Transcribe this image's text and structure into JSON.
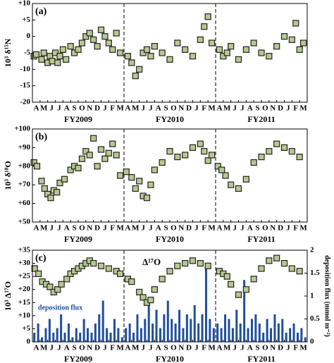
{
  "chart_data": [
    {
      "type": "scatter",
      "panel_label": "(a)",
      "ylabel": "10³ δ¹⁵N",
      "categories": [
        "A",
        "M",
        "J",
        "J",
        "A",
        "S",
        "O",
        "N",
        "D",
        "J",
        "F",
        "M",
        "A",
        "M",
        "J",
        "J",
        "A",
        "S",
        "O",
        "N",
        "D",
        "J",
        "F",
        "M",
        "A",
        "M",
        "J",
        "J",
        "A",
        "S",
        "O",
        "N",
        "D",
        "J",
        "F",
        "M"
      ],
      "fy_labels": [
        "FY2009",
        "FY2010",
        "FY2011"
      ],
      "vlines": [
        12,
        24
      ],
      "xlim": [
        0,
        36
      ],
      "ylim": [
        -20,
        10
      ],
      "yticks": [
        {
          "value": 10,
          "label": "+10"
        },
        {
          "value": 5,
          "label": "+5"
        },
        0,
        -5,
        -10,
        -15,
        -20
      ],
      "color": "#b7c98f",
      "x": [
        0.2,
        0.5,
        1.2,
        1.5,
        2,
        2.3,
        2.6,
        3,
        3.3,
        3.6,
        4,
        4.4,
        5,
        5.5,
        6,
        6.5,
        7,
        7.5,
        8,
        8.5,
        9,
        9.5,
        10,
        10.5,
        11,
        11.5,
        12.5,
        13,
        13.5,
        14,
        14.5,
        15,
        15.5,
        16,
        17,
        18,
        19,
        20,
        21,
        22,
        22.5,
        23,
        23.5,
        24.5,
        25,
        25.5,
        26,
        27,
        28,
        29,
        30,
        31,
        32,
        33,
        34,
        34.5,
        35,
        35.5
      ],
      "values": [
        -6,
        -5.5,
        -7,
        -5,
        -8,
        -6,
        -7.5,
        -5,
        -8,
        -6,
        -4,
        -7,
        -3,
        -5,
        -4,
        -2,
        0,
        1,
        -1,
        -3,
        2,
        0,
        -2,
        -4,
        1,
        -5,
        -6,
        -8,
        -12,
        -10,
        -5,
        -4,
        -6,
        -3,
        -5,
        -7,
        -2,
        -4,
        -6,
        -1,
        3,
        6,
        -2,
        -4,
        -6,
        -5,
        -3,
        -7,
        -4,
        -2,
        -5,
        -6,
        -3,
        0,
        -1,
        4,
        -4,
        -2
      ]
    },
    {
      "type": "scatter",
      "panel_label": "(b)",
      "ylabel": "10³ δ¹⁸O",
      "categories": [
        "A",
        "M",
        "J",
        "J",
        "A",
        "S",
        "O",
        "N",
        "D",
        "J",
        "F",
        "M",
        "A",
        "M",
        "J",
        "J",
        "A",
        "S",
        "O",
        "N",
        "D",
        "J",
        "F",
        "M",
        "A",
        "M",
        "J",
        "J",
        "A",
        "S",
        "O",
        "N",
        "D",
        "J",
        "F",
        "M"
      ],
      "fy_labels": [
        "FY2009",
        "FY2010",
        "FY2011"
      ],
      "vlines": [
        12,
        24
      ],
      "xlim": [
        0,
        36
      ],
      "ylim": [
        50,
        100
      ],
      "yticks": [
        {
          "value": 100,
          "label": "+100"
        },
        {
          "value": 90,
          "label": "+90"
        },
        {
          "value": 80,
          "label": "+80"
        },
        {
          "value": 70,
          "label": "+70"
        },
        {
          "value": 60,
          "label": "+60"
        },
        {
          "value": 50,
          "label": "+50"
        }
      ],
      "color": "#b7c98f",
      "x": [
        0.2,
        0.6,
        1.2,
        1.6,
        2,
        2.4,
        2.8,
        3.2,
        3.6,
        4.2,
        5,
        5.5,
        6,
        6.5,
        7,
        7.5,
        8,
        8.5,
        9,
        9.5,
        10,
        10.5,
        11,
        11.5,
        12.3,
        13,
        13.5,
        14,
        14.5,
        15,
        15.5,
        16,
        17,
        18,
        19,
        20,
        21,
        22,
        22.5,
        23,
        23.5,
        24.3,
        24.8,
        25.3,
        26,
        27,
        28,
        29,
        30,
        31,
        32,
        33,
        34,
        35
      ],
      "values": [
        82,
        80,
        72,
        68,
        65,
        63,
        67,
        66,
        71,
        73,
        78,
        80,
        79,
        84,
        88,
        86,
        95,
        80,
        89,
        84,
        87,
        92,
        86,
        75,
        77,
        74,
        68,
        72,
        64,
        63,
        70,
        78,
        82,
        88,
        85,
        86,
        90,
        92,
        88,
        83,
        86,
        80,
        78,
        75,
        70,
        68,
        73,
        82,
        85,
        88,
        92,
        90,
        88,
        85
      ]
    },
    {
      "type": "scatter",
      "panel_label": "(c)",
      "ylabel": "10³ Δ¹⁷O",
      "y2label": "deposition flux (mmol m⁻²)",
      "categories": [
        "A",
        "M",
        "J",
        "J",
        "A",
        "S",
        "O",
        "N",
        "D",
        "J",
        "F",
        "M",
        "A",
        "M",
        "J",
        "J",
        "A",
        "S",
        "O",
        "N",
        "D",
        "J",
        "F",
        "M",
        "A",
        "M",
        "J",
        "J",
        "A",
        "S",
        "O",
        "N",
        "D",
        "J",
        "F",
        "M"
      ],
      "fy_labels": [
        "FY2009",
        "FY2010",
        "FY2011"
      ],
      "vlines": [
        12,
        24
      ],
      "xlim": [
        0,
        36
      ],
      "ylim": [
        0,
        35
      ],
      "yticks": [
        {
          "value": 35,
          "label": "+35"
        },
        {
          "value": 30,
          "label": "+30"
        },
        {
          "value": 25,
          "label": "+25"
        },
        {
          "value": 20,
          "label": "+20"
        },
        {
          "value": 15,
          "label": "+15"
        },
        {
          "value": 10,
          "label": "+10"
        },
        {
          "value": 5,
          "label": "+5"
        },
        0
      ],
      "y2lim": [
        0,
        2.0
      ],
      "y2ticks": [
        2,
        1.5,
        1,
        0.5,
        0
      ],
      "series": [
        {
          "name": "Δ¹⁷O",
          "type": "scatter",
          "color": "#b7c98f",
          "x": [
            0.3,
            0.8,
            1.3,
            1.8,
            2.3,
            2.8,
            3.3,
            3.8,
            4.5,
            5,
            5.5,
            6,
            6.5,
            7,
            7.5,
            8,
            9,
            10,
            11,
            11.5,
            12.5,
            13,
            14,
            14.5,
            15,
            15.5,
            16,
            17,
            18,
            19,
            20,
            21,
            22,
            23,
            24.5,
            25,
            25.5,
            26,
            27,
            28,
            29,
            30,
            31,
            32,
            33,
            34,
            35
          ],
          "values": [
            28,
            26,
            23,
            22,
            21,
            19,
            20,
            22,
            24,
            26,
            27,
            28,
            29,
            30,
            31,
            30,
            29,
            28,
            27,
            26,
            24,
            23,
            19,
            17,
            15,
            16,
            20,
            24,
            27,
            29,
            30,
            31,
            30,
            29,
            27,
            26,
            25,
            22,
            18,
            20,
            24,
            28,
            31,
            32,
            30,
            28,
            27
          ]
        },
        {
          "name": "deposition flux",
          "type": "bar",
          "axis": "y2",
          "color": "#1f4e9c",
          "x": [
            0.25,
            0.75,
            1.25,
            1.75,
            2.25,
            2.75,
            3.25,
            3.75,
            4.25,
            4.75,
            5.25,
            5.75,
            6.25,
            6.75,
            7.25,
            7.75,
            8.25,
            8.75,
            9.25,
            9.75,
            10.25,
            10.75,
            11.25,
            11.75,
            12.25,
            12.75,
            13.25,
            13.75,
            14.25,
            14.75,
            15.25,
            15.75,
            16.25,
            16.75,
            17.25,
            17.75,
            18.25,
            18.75,
            19.25,
            19.75,
            20.25,
            20.75,
            21.25,
            21.75,
            22.25,
            22.75,
            23.25,
            23.75,
            24.25,
            24.75,
            25.25,
            25.75,
            26.25,
            26.75,
            27.25,
            27.75,
            28.25,
            28.75,
            29.25,
            29.75,
            30.25,
            30.75,
            31.25,
            31.75,
            32.25,
            32.75,
            33.25,
            33.75,
            34.25,
            34.75,
            35.25,
            35.75
          ],
          "values": [
            0.2,
            0.4,
            0.1,
            0.3,
            0.5,
            0.2,
            0.3,
            0.6,
            0.2,
            0.4,
            0.1,
            0.3,
            0.2,
            0.5,
            0.3,
            0.2,
            0.4,
            0.6,
            0.9,
            0.3,
            0.2,
            0.5,
            0.3,
            0.1,
            0.3,
            0.4,
            0.2,
            0.6,
            0.3,
            0.5,
            0.8,
            0.4,
            0.7,
            0.3,
            0.6,
            0.9,
            0.5,
            0.4,
            0.7,
            0.3,
            0.6,
            0.5,
            0.8,
            0.4,
            0.6,
            1.65,
            0.5,
            0.3,
            0.4,
            0.3,
            0.6,
            0.5,
            0.3,
            0.7,
            0.4,
            1.35,
            0.3,
            0.5,
            0.6,
            0.4,
            0.2,
            0.5,
            0.3,
            0.6,
            0.4,
            0.5,
            0.2,
            0.3,
            0.4,
            0.2,
            0.3,
            0.1
          ]
        }
      ]
    }
  ]
}
